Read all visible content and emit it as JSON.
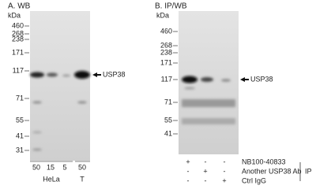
{
  "panel_a": {
    "title": "A. WB",
    "unit": "kDa",
    "markers": [
      "460",
      "268",
      "238",
      "171",
      "117",
      "71",
      "55",
      "41",
      "31"
    ],
    "band_label": "USP38",
    "lanes": [
      "50",
      "15",
      "5",
      "50"
    ],
    "groups": [
      "HeLa",
      "T"
    ]
  },
  "panel_b": {
    "title": "B. IP/WB",
    "unit": "kDa",
    "markers": [
      "460",
      "268",
      "238",
      "171",
      "117",
      "71",
      "55",
      "41"
    ],
    "band_label": "USP38",
    "rows": [
      {
        "label": "NB100-40833",
        "signs": [
          "+",
          "-",
          "-"
        ]
      },
      {
        "label": "Another USP38 Ab",
        "signs": [
          "-",
          "+",
          "-"
        ]
      },
      {
        "label": "Ctrl IgG",
        "signs": [
          "-",
          "-",
          "+"
        ]
      }
    ],
    "group_label": "IP"
  }
}
